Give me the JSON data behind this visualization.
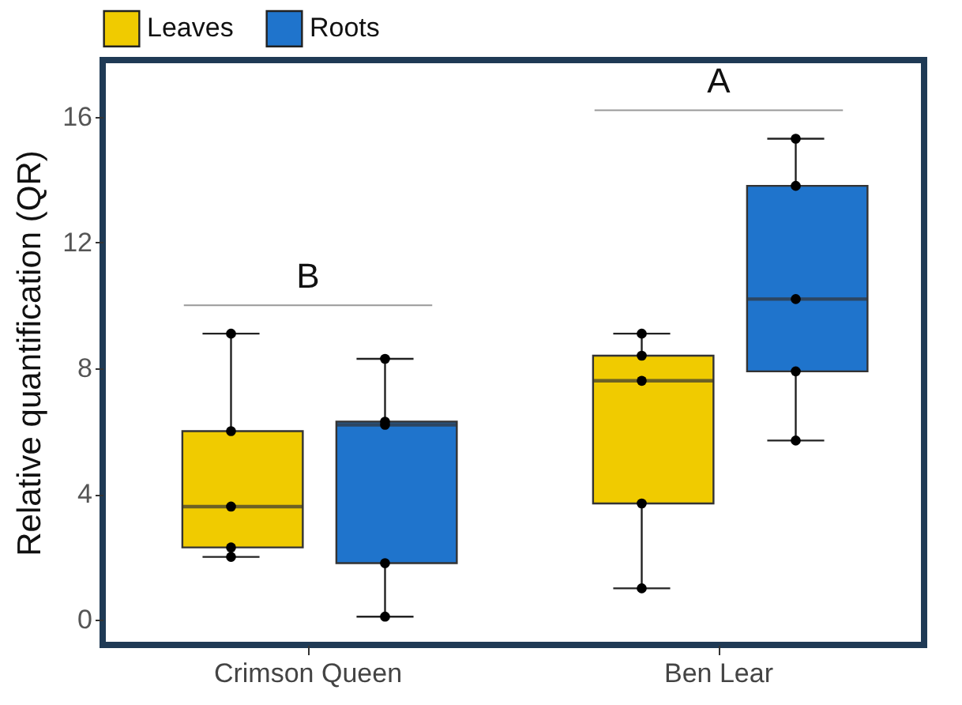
{
  "chart_data": {
    "type": "box",
    "ylabel": "Relative quantification (QR)",
    "categories": [
      "Crimson Queen",
      "Ben Lear"
    ],
    "ylim": [
      -0.8,
      17.8
    ],
    "yticks": [
      0,
      4,
      8,
      12,
      16
    ],
    "grid": false,
    "legend": "top",
    "marker": "circle",
    "series": [
      {
        "name": "Leaves",
        "type": "box",
        "color": "#f0cb00",
        "boxes": [
          {
            "low": 2.0,
            "q1": 2.3,
            "median": 3.6,
            "q3": 6.0,
            "high": 9.1
          },
          {
            "low": 1.0,
            "q1": 3.7,
            "median": 7.6,
            "q3": 8.4,
            "high": 9.1
          }
        ]
      },
      {
        "name": "Roots",
        "type": "box",
        "color": "#1f74cc",
        "boxes": [
          {
            "low": 0.1,
            "q1": 1.8,
            "median": 6.2,
            "q3": 6.3,
            "high": 8.3
          },
          {
            "low": 5.7,
            "q1": 7.9,
            "median": 10.2,
            "q3": 13.8,
            "high": 15.3
          }
        ]
      },
      {
        "type": "scatter",
        "color": "#000000",
        "x": [
          "Crimson Queen",
          "Crimson Queen",
          "Crimson Queen",
          "Crimson Queen",
          "Crimson Queen",
          "Ben Lear",
          "Ben Lear",
          "Ben Lear",
          "Ben Lear",
          "Ben Lear"
        ],
        "values": [
          9.1,
          6.0,
          3.6,
          2.3,
          2.0,
          9.1,
          8.4,
          7.6,
          3.7,
          1.0
        ]
      },
      {
        "type": "scatter",
        "color": "#000000",
        "x": [
          "Crimson Queen",
          "Crimson Queen",
          "Crimson Queen",
          "Crimson Queen",
          "Crimson Queen",
          "Ben Lear",
          "Ben Lear",
          "Ben Lear",
          "Ben Lear",
          "Ben Lear"
        ],
        "values": [
          8.3,
          6.3,
          6.2,
          1.8,
          0.1,
          15.3,
          13.8,
          10.2,
          7.9,
          5.7
        ]
      }
    ],
    "annotations": [
      "B",
      "A"
    ]
  }
}
